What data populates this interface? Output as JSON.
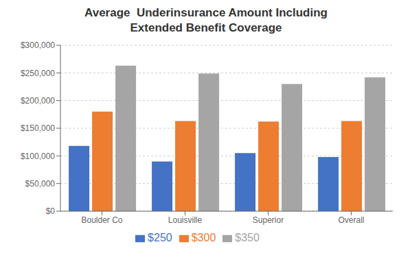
{
  "chart_data": {
    "type": "bar",
    "title": "Average  Underinsurance Amount Including\nExtended Benefit Coverage",
    "categories": [
      "Boulder Co",
      "Louisville",
      "Superior",
      "Overall"
    ],
    "series": [
      {
        "name": "$250",
        "color": "#4472C4",
        "values": [
          118000,
          90000,
          105000,
          98000
        ]
      },
      {
        "name": "$300",
        "color": "#ED7D31",
        "values": [
          180000,
          163000,
          162000,
          163000
        ]
      },
      {
        "name": "$350",
        "color": "#A5A5A5",
        "values": [
          263000,
          249000,
          230000,
          242000
        ]
      }
    ],
    "ylim": [
      0,
      300000
    ],
    "yticks": [
      {
        "value": 0,
        "label": "$0"
      },
      {
        "value": 50000,
        "label": "$50,000"
      },
      {
        "value": 100000,
        "label": "$100,000"
      },
      {
        "value": 150000,
        "label": "$150,000"
      },
      {
        "value": 200000,
        "label": "$200,000"
      },
      {
        "value": 250000,
        "label": "$250,000"
      },
      {
        "value": 300000,
        "label": "$300,000"
      }
    ],
    "grid": true,
    "legend": "bottom"
  }
}
